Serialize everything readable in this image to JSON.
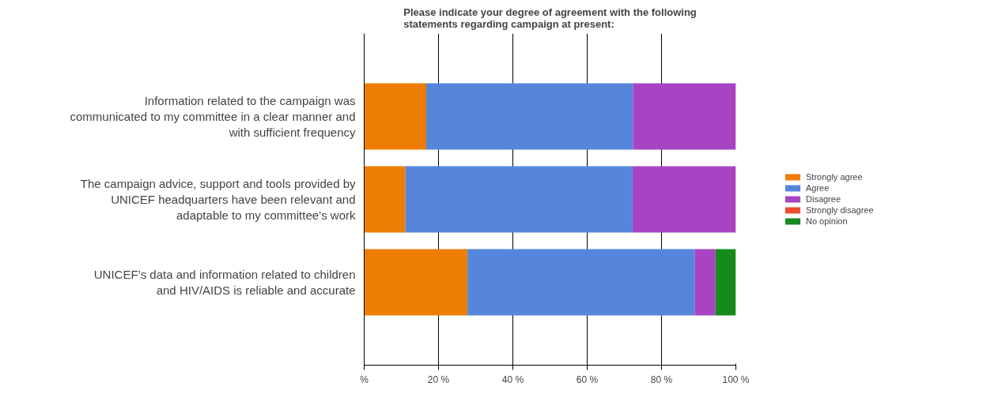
{
  "chart_data": {
    "type": "bar",
    "orientation": "horizontal",
    "stacked": true,
    "title": "Please indicate your degree of agreement with the following statements regarding campaign at present:",
    "categories": [
      "Information related to the campaign was communicated to my committee in a clear manner and with sufficient frequency",
      "The campaign advice, support and tools provided by UNICEF headquarters have been relevant and adaptable to my committee’s work",
      "UNICEF’s data and information related to children and HIV/AIDS is reliable and accurate"
    ],
    "series": [
      {
        "name": "Strongly agree",
        "color": "#ee7d06",
        "values": [
          16.7,
          11.1,
          27.8
        ]
      },
      {
        "name": "Agree",
        "color": "#5586dc",
        "values": [
          55.6,
          61.1,
          61.1
        ]
      },
      {
        "name": "Disagree",
        "color": "#a844c4",
        "values": [
          27.7,
          27.8,
          5.6
        ]
      },
      {
        "name": "Strongly disagree",
        "color": "#ec5030",
        "values": [
          0,
          0,
          0
        ]
      },
      {
        "name": "No opinion",
        "color": "#178a1c",
        "values": [
          0,
          0,
          5.5
        ]
      }
    ],
    "xlim": [
      0,
      100
    ],
    "xticks": [
      {
        "value": 0,
        "label": "%"
      },
      {
        "value": 20,
        "label": "20 %"
      },
      {
        "value": 40,
        "label": "40 %"
      },
      {
        "value": 60,
        "label": "60 %"
      },
      {
        "value": 80,
        "label": "80 %"
      },
      {
        "value": 100,
        "label": "100 %"
      }
    ],
    "grid": "x",
    "legend": "right"
  }
}
